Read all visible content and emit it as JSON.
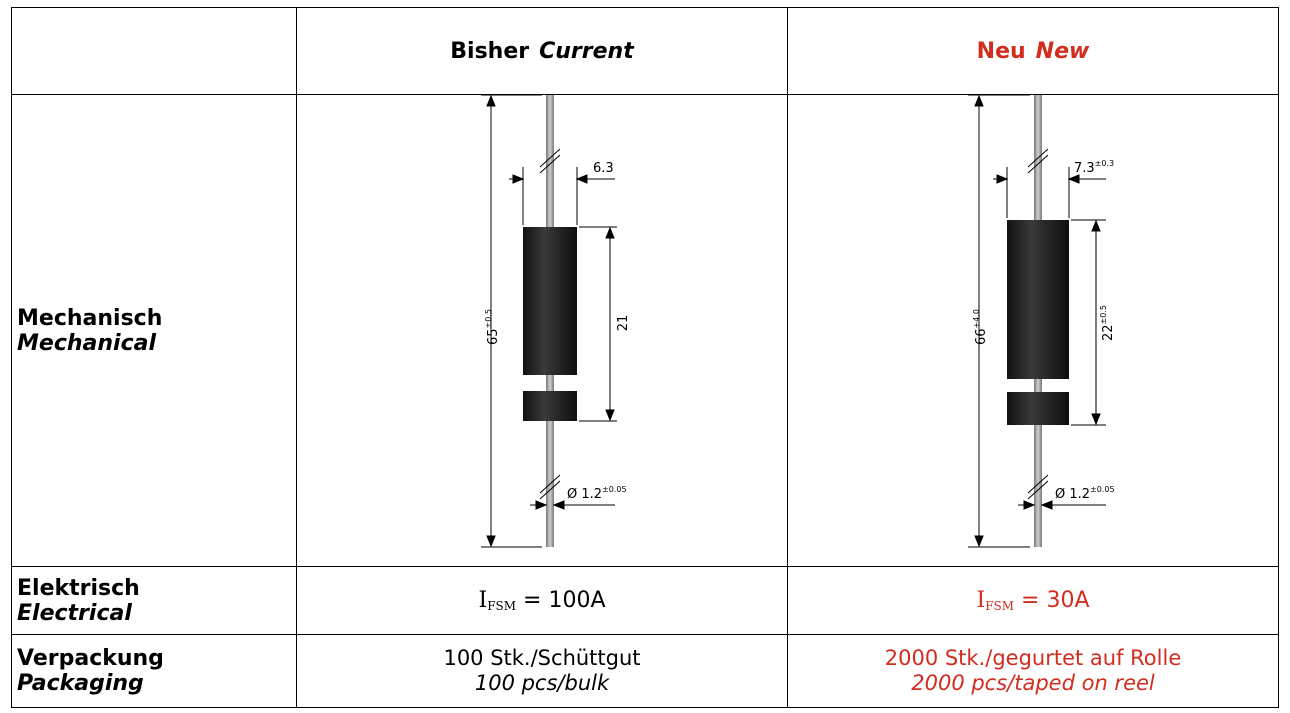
{
  "header": {
    "current_de": "Bisher",
    "current_en": "Current",
    "new_de": "Neu",
    "new_en": "New"
  },
  "rows": {
    "mechanical": {
      "de": "Mechanisch",
      "en": "Mechanical"
    },
    "electrical": {
      "de": "Elektrisch",
      "en": "Electrical"
    },
    "packaging": {
      "de": "Verpackung",
      "en": "Packaging"
    }
  },
  "current": {
    "length_main": "65",
    "length_tol": "±0.5",
    "diameter_main": "6.3",
    "body_length": "21",
    "lead_main": "Ø 1.2",
    "lead_tol": "±0.05",
    "ifsm_symbol": "I",
    "ifsm_sub": "FSM",
    "ifsm_value": "= 100A",
    "packaging_de": "100 Stk./Schüttgut",
    "packaging_en": "100 pcs/bulk"
  },
  "new": {
    "length_main": "66",
    "length_tol": "+4.0",
    "diameter_main": "7.3",
    "diameter_tol": "±0.3",
    "body_length": "22",
    "body_tol": "±0.5",
    "lead_main": "Ø 1.2",
    "lead_tol": "±0.05",
    "ifsm_symbol": "I",
    "ifsm_sub": "FSM",
    "ifsm_value": "= 30A",
    "packaging_de": "2000 Stk./gegurtet auf Rolle",
    "packaging_en": "2000 pcs/taped on reel"
  },
  "colors": {
    "new_accent": "#d22d1e",
    "body_dark": "#1c1c1c",
    "lead_gray": "#9a9a9a"
  }
}
